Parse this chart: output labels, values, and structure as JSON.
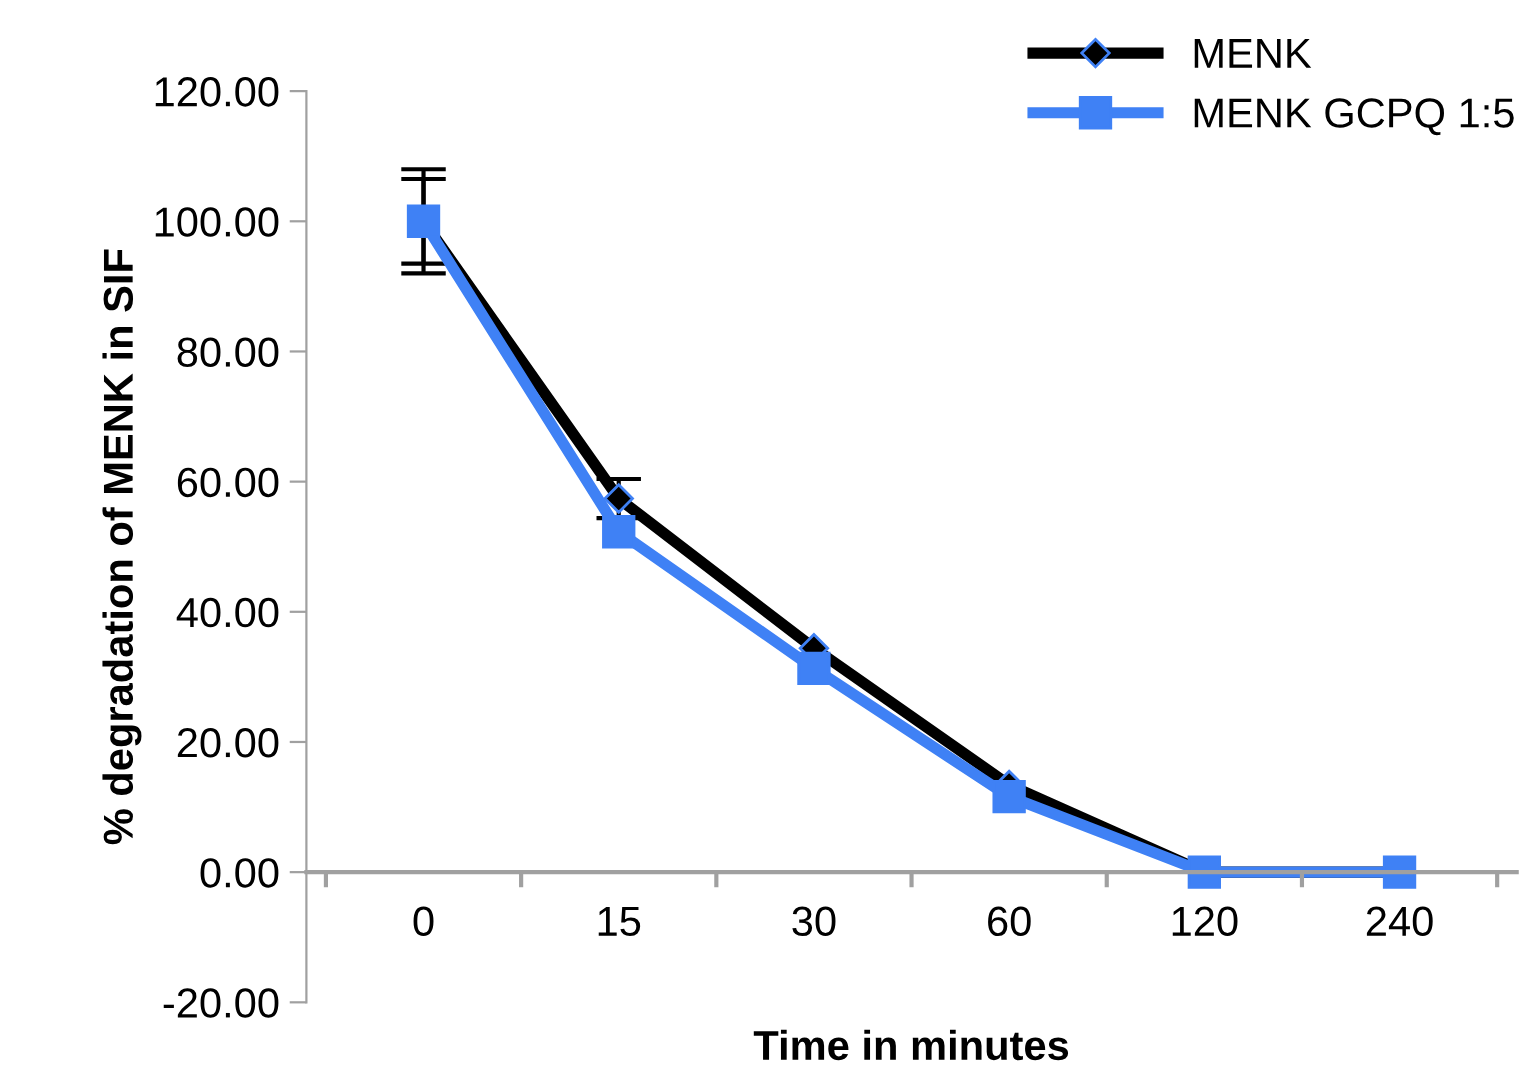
{
  "chart_data": {
    "type": "line",
    "xlabel": "Time in minutes",
    "ylabel": "% degradation of MENK in SIF",
    "categories": [
      "0",
      "15",
      "30",
      "60",
      "120",
      "240"
    ],
    "series": [
      {
        "name": "MENK",
        "color": "#000000",
        "marker": "diamond",
        "values": [
          100,
          57.4,
          34.4,
          13.4,
          0,
          0
        ],
        "errors": [
          8,
          3,
          null,
          null,
          null,
          null
        ]
      },
      {
        "name": "MENK GCPQ 1:5",
        "color": "#3f81f5",
        "marker": "square",
        "values": [
          100,
          52.3,
          31.3,
          11.6,
          0,
          0
        ],
        "errors": [
          6.5,
          null,
          null,
          null,
          null,
          null
        ]
      }
    ],
    "ylim": [
      -20,
      120
    ],
    "yticks": [
      {
        "value": -20,
        "label": "-20.00"
      },
      {
        "value": 0,
        "label": "0.00"
      },
      {
        "value": 20,
        "label": "20.00"
      },
      {
        "value": 40,
        "label": "40.00"
      },
      {
        "value": 60,
        "label": "60.00"
      },
      {
        "value": 80,
        "label": "80.00"
      },
      {
        "value": 100,
        "label": "100.00"
      },
      {
        "value": 120,
        "label": "120.00"
      }
    ],
    "grid": false,
    "legend": "top right",
    "line_style": "solid"
  }
}
